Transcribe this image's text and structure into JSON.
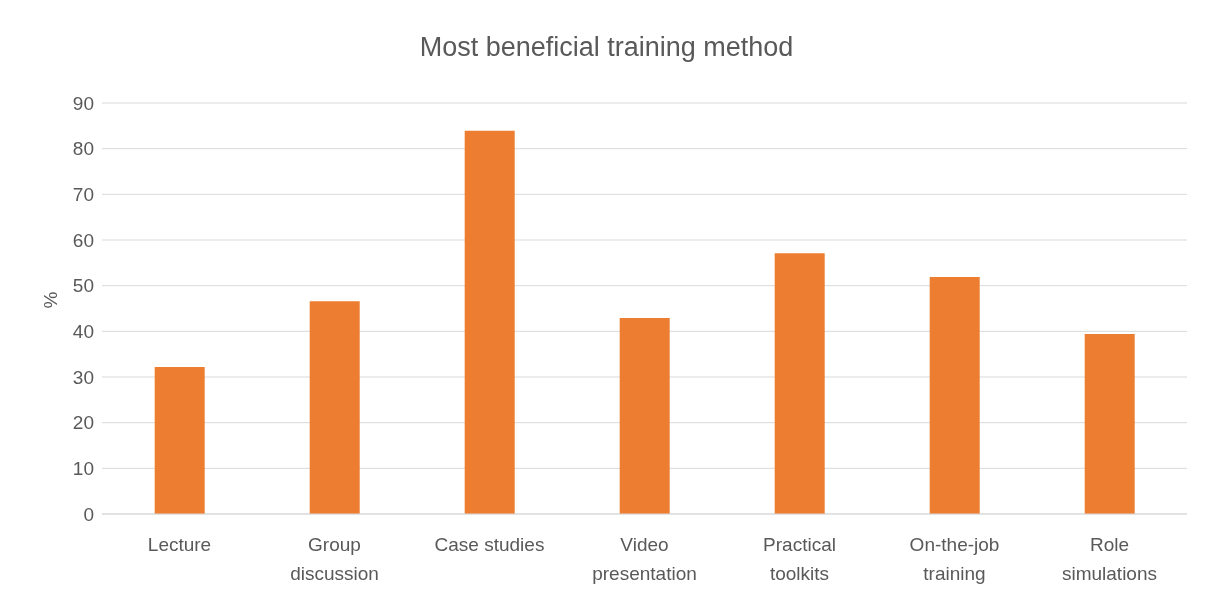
{
  "chart_data": {
    "type": "bar",
    "title": "Most beneficial training method",
    "ylabel": "%",
    "categories": [
      "Lecture",
      "Group discussion",
      "Case studies",
      "Video presentation",
      "Practical toolkits",
      "On-the-job training",
      "Role simulations"
    ],
    "values": [
      32.2,
      46.6,
      83.9,
      42.9,
      57.1,
      51.9,
      39.4
    ],
    "color": "#ed7d31",
    "ylim": [
      0,
      90
    ],
    "yticks": [
      0,
      10,
      20,
      30,
      40,
      50,
      60,
      70,
      80,
      90
    ],
    "grid": "y"
  }
}
